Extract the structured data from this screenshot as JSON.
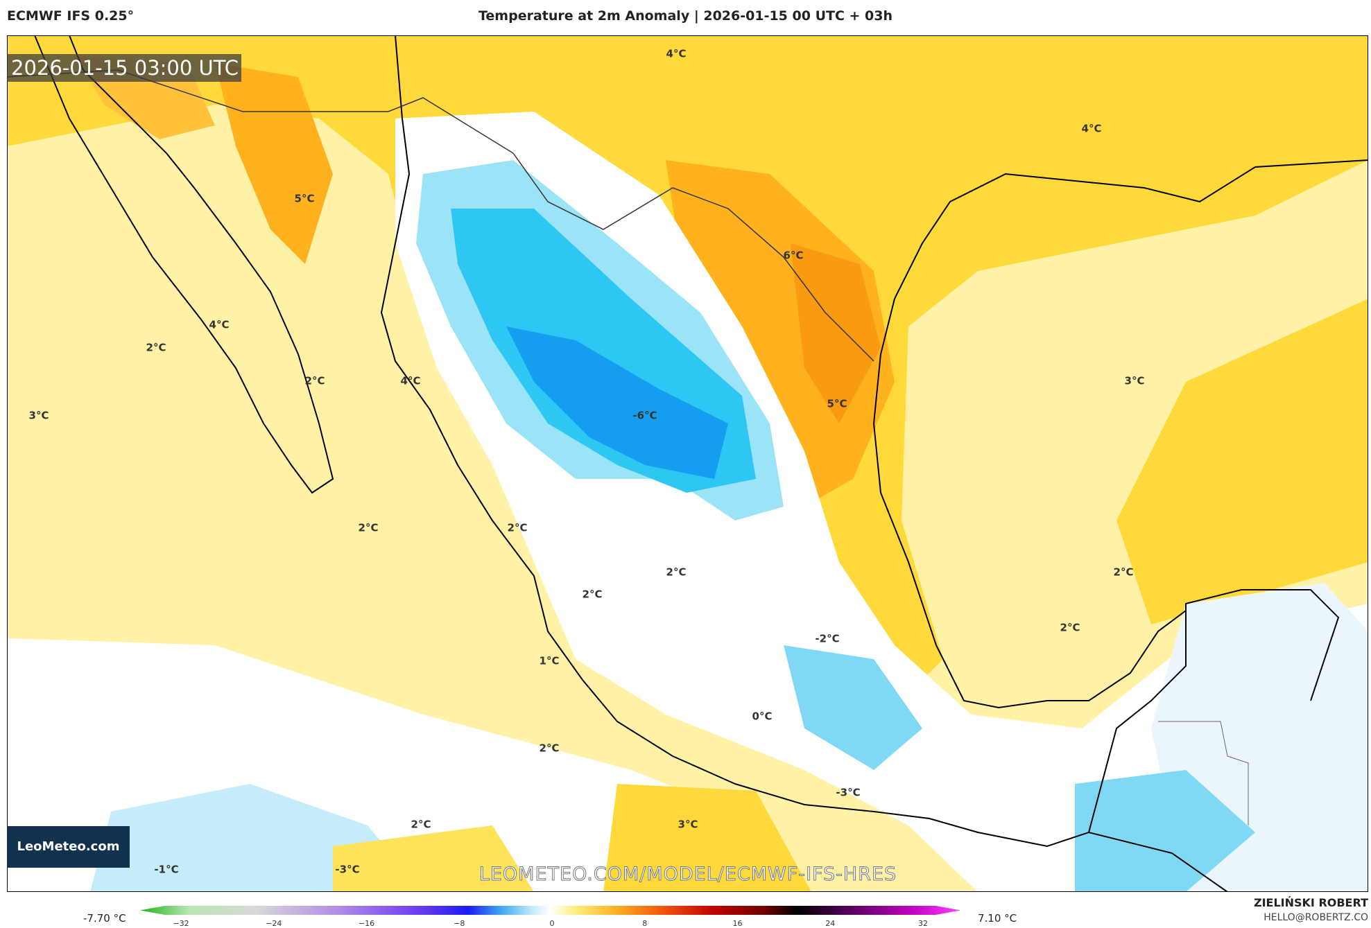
{
  "header": {
    "model": "ECMWF IFS 0.25°",
    "title": "Temperature at 2m Anomaly | 2026-01-15 00 UTC + 03h",
    "valid_time": "2026-01-15 03:00 UTC"
  },
  "contour_labels": [
    "4°C",
    "4°C",
    "5°C",
    "6°C",
    "4°C",
    "2°C",
    "2°C",
    "4°C",
    "3°C",
    "-6°C",
    "5°C",
    "3°C",
    "2°C",
    "2°C",
    "2°C",
    "2°C",
    "2°C",
    "2°C",
    "-2°C",
    "1°C",
    "0°C",
    "2°C",
    "-3°C",
    "2°C",
    "3°C",
    "-1°C",
    "-3°C"
  ],
  "branding": {
    "logo": "LeoMeteo.com",
    "url": "LEOMETEO.COM/MODEL/ECMWF-IFS-HRES",
    "author": "ZIELIŃSKI ROBERT",
    "contact": "HELLO@ROBERTZ.CO"
  },
  "colorbar": {
    "min_label": "-7.70 °C",
    "max_label": "7.10 °C",
    "ticks": [
      "−32",
      "−24",
      "−16",
      "−8",
      "0",
      "8",
      "16",
      "24",
      "32"
    ]
  }
}
